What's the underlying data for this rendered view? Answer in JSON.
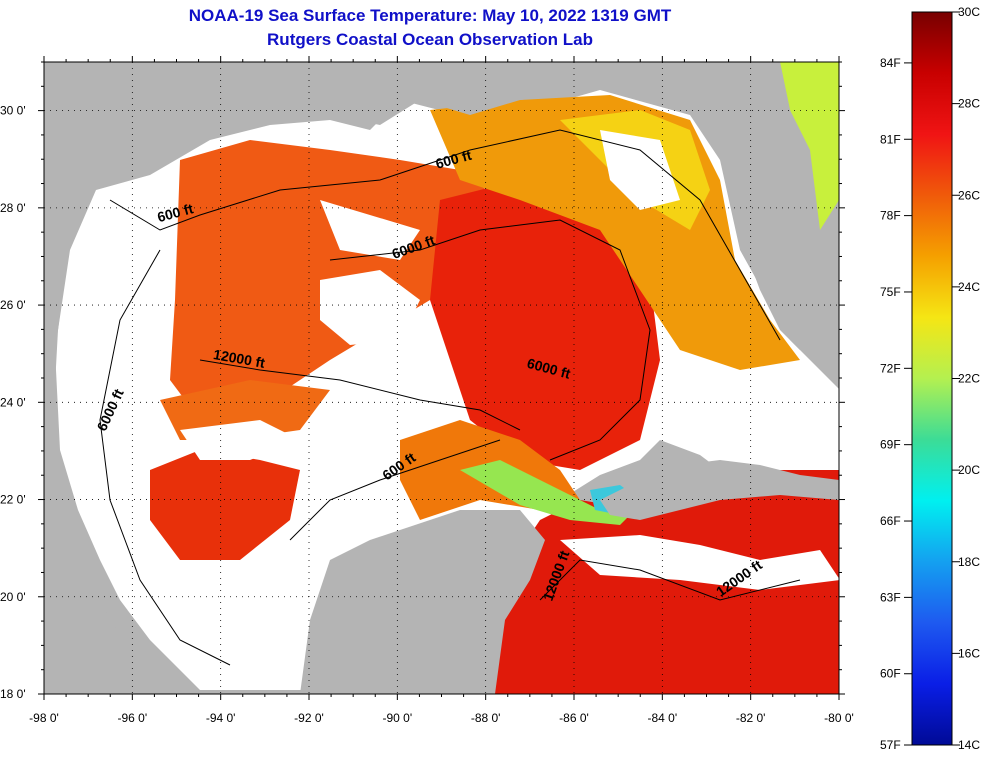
{
  "header": {
    "title": "NOAA-19 Sea Surface Temperature:  May 10, 2022 1319 GMT",
    "subtitle": "Rutgers Coastal Ocean Observation Lab"
  },
  "map": {
    "lon_range": [
      -98,
      -80
    ],
    "lat_range": [
      18,
      31
    ],
    "lon_ticks": [
      "-98 0'",
      "-96 0'",
      "-94 0'",
      "-92 0'",
      "-90 0'",
      "-88 0'",
      "-86 0'",
      "-84 0'",
      "-82 0'",
      "-80 0'"
    ],
    "lat_ticks": [
      "18 0'",
      "20 0'",
      "22 0'",
      "24 0'",
      "26 0'",
      "28 0'",
      "30 0'"
    ],
    "land_color": "#b4b4b4",
    "cloud_color": "#ffffff",
    "contour_labels": [
      {
        "text": "600 ft",
        "lon": -88.7,
        "lat": 28.9
      },
      {
        "text": "600 ft",
        "lon": -95.0,
        "lat": 27.8
      },
      {
        "text": "6000 ft",
        "lon": -89.6,
        "lat": 27.1
      },
      {
        "text": "12000 ft",
        "lon": -93.6,
        "lat": 24.8
      },
      {
        "text": "6000 ft",
        "lon": -86.6,
        "lat": 24.6
      },
      {
        "text": "6000 ft",
        "lon": -96.4,
        "lat": 23.8
      },
      {
        "text": "600 ft",
        "lon": -89.9,
        "lat": 22.6
      },
      {
        "text": "12000 ft",
        "lon": -86.3,
        "lat": 20.4
      },
      {
        "text": "12000 ft",
        "lon": -82.2,
        "lat": 20.3
      }
    ]
  },
  "colorbar": {
    "celsius_labels": [
      "30C",
      "28C",
      "26C",
      "24C",
      "22C",
      "20C",
      "18C",
      "16C",
      "14C"
    ],
    "fahrenheit_labels": [
      "84F",
      "81F",
      "78F",
      "75F",
      "72F",
      "69F",
      "66F",
      "63F",
      "60F",
      "57F"
    ],
    "colors_top_to_bottom": [
      "#780000",
      "#c80000",
      "#f01414",
      "#f05a0a",
      "#f5a000",
      "#f5e614",
      "#b4f050",
      "#3cdc96",
      "#00f0f0",
      "#14a0f0",
      "#1e5af0",
      "#0a1ee6",
      "#000a96"
    ]
  }
}
